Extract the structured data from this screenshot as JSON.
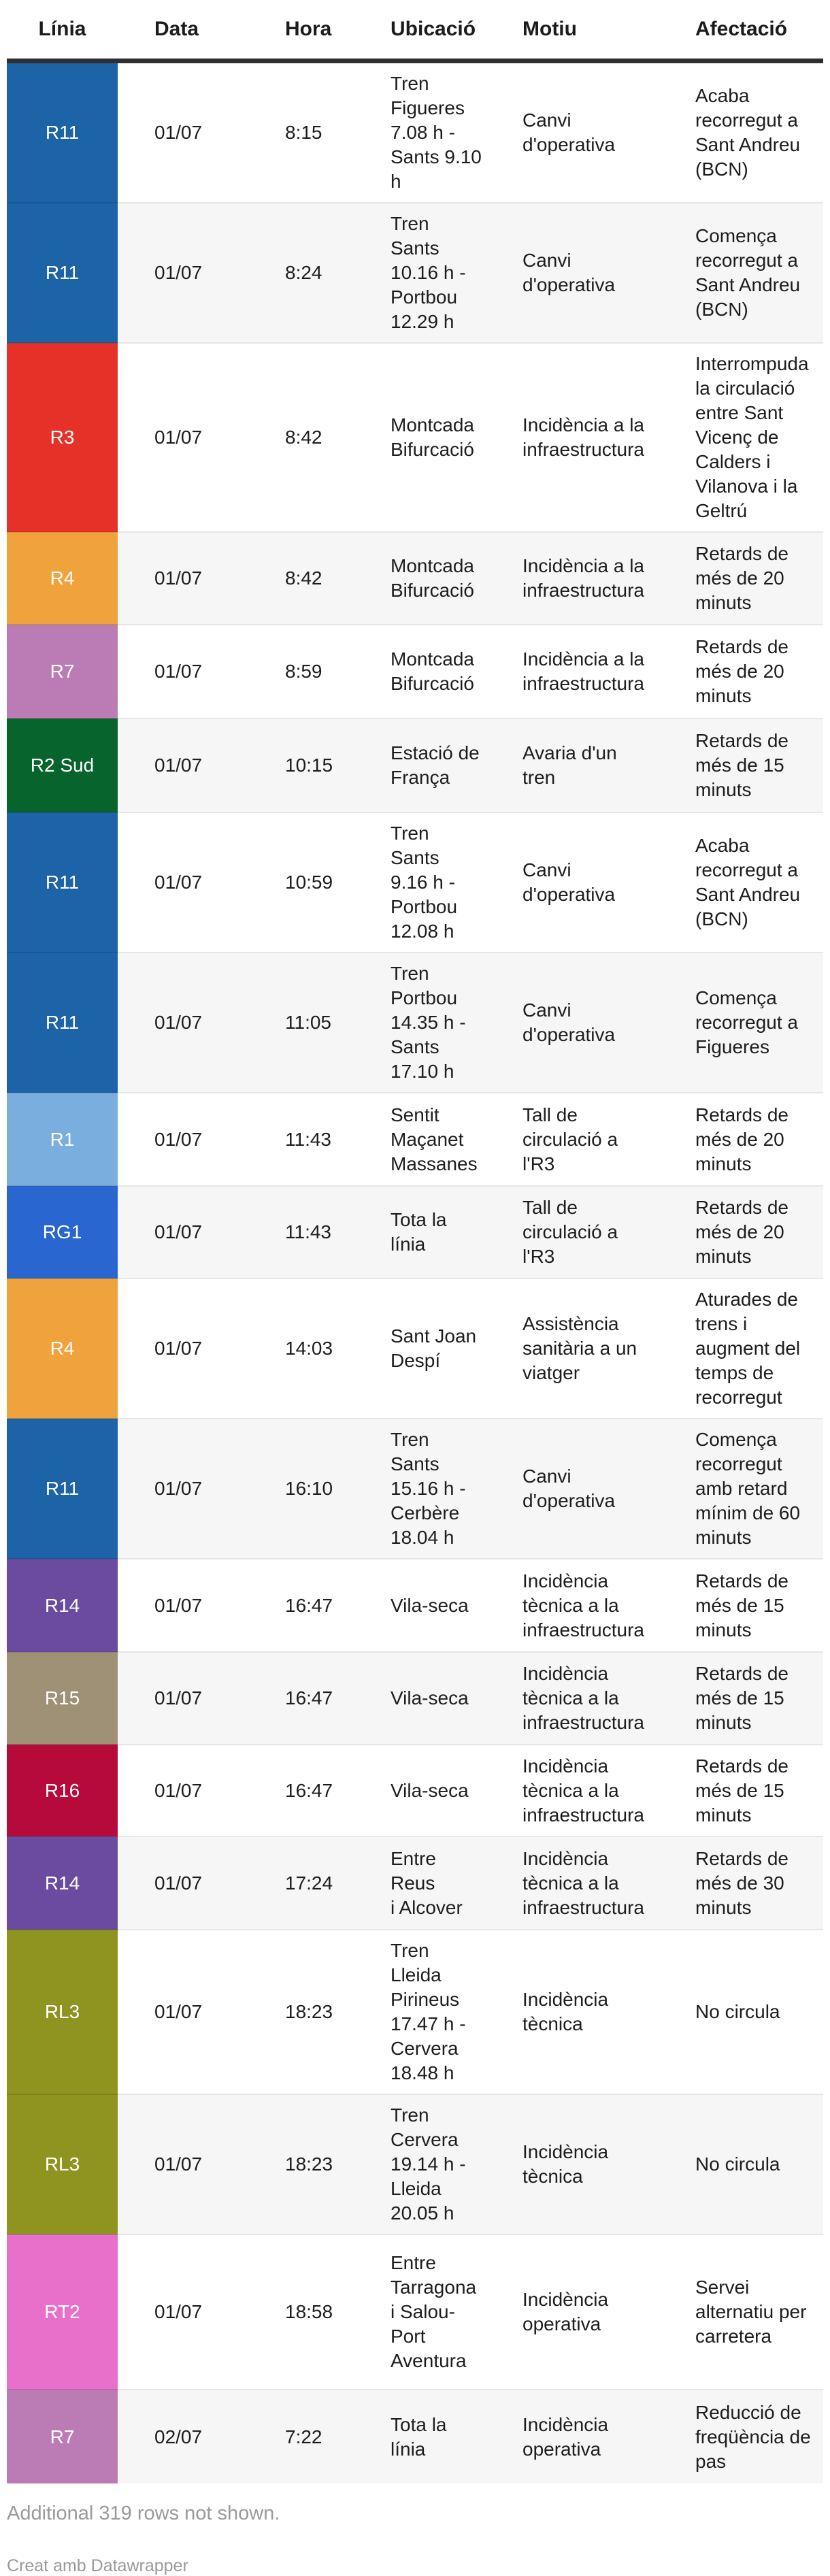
{
  "colors": {
    "header_rule": "#2f2f2f",
    "alt_row_bg": "#f6f6f6",
    "separator": "#e6e6e6",
    "body_text": "#1d1d1d",
    "footer_text": "#9a9a9a",
    "badge_text": "#ffffff"
  },
  "table": {
    "columns": [
      "Línia",
      "Data",
      "Hora",
      "Ubicació",
      "Motiu",
      "Afectació"
    ],
    "rows": [
      {
        "line": "R11",
        "color": "#1d63a8",
        "date": "01/07",
        "time": "8:15",
        "location": "Tren\nFigueres\n7.08 h -\nSants 9.10\nh",
        "reason": "Canvi\nd'operativa",
        "impact": "Acaba\nrecorregut a\nSant Andreu\n(BCN)"
      },
      {
        "line": "R11",
        "color": "#1d63a8",
        "date": "01/07",
        "time": "8:24",
        "location": "Tren Sants\n10.16 h -\nPortbou\n12.29 h",
        "reason": "Canvi\nd'operativa",
        "impact": "Comença\nrecorregut a\nSant Andreu\n(BCN)"
      },
      {
        "line": "R3",
        "color": "#e63128",
        "date": "01/07",
        "time": "8:42",
        "location": "Montcada\nBifurcació",
        "reason": "Incidència a la\ninfraestructura",
        "impact": "Interrompuda\nla circulació\nentre Sant\nVicenç de\nCalders i\nVilanova i la\nGeltrú"
      },
      {
        "line": "R4",
        "color": "#f0a33c",
        "date": "01/07",
        "time": "8:42",
        "location": "Montcada\nBifurcació",
        "reason": "Incidència a la\ninfraestructura",
        "impact": "Retards de\nmés de 20\nminuts"
      },
      {
        "line": "R7",
        "color": "#bb7cb6",
        "date": "01/07",
        "time": "8:59",
        "location": "Montcada\nBifurcació",
        "reason": "Incidència a la\ninfraestructura",
        "impact": "Retards de\nmés de 20\nminuts"
      },
      {
        "line": "R2 Sud",
        "color": "#07642c",
        "date": "01/07",
        "time": "10:15",
        "location": "Estació de\nFrança",
        "reason": "Avaria d'un\ntren",
        "impact": "Retards de\nmés de 15\nminuts"
      },
      {
        "line": "R11",
        "color": "#1d63a8",
        "date": "01/07",
        "time": "10:59",
        "location": "Tren Sants\n9.16 h -\nPortbou\n12.08 h",
        "reason": "Canvi\nd'operativa",
        "impact": "Acaba\nrecorregut a\nSant Andreu\n(BCN)"
      },
      {
        "line": "R11",
        "color": "#1d63a8",
        "date": "01/07",
        "time": "11:05",
        "location": "Tren\nPortbou\n14.35 h -\nSants\n17.10 h",
        "reason": "Canvi\nd'operativa",
        "impact": "Comença\nrecorregut a\nFigueres"
      },
      {
        "line": "R1",
        "color": "#7aaede",
        "date": "01/07",
        "time": "11:43",
        "location": "Sentit\nMaçanet\nMassanes",
        "reason": "Tall de\ncirculació a\nl'R3",
        "impact": "Retards de\nmés de 20\nminuts"
      },
      {
        "line": "RG1",
        "color": "#2966cf",
        "date": "01/07",
        "time": "11:43",
        "location": "Tota la\nlínia",
        "reason": "Tall de\ncirculació a\nl'R3",
        "impact": "Retards de\nmés de 20\nminuts"
      },
      {
        "line": "R4",
        "color": "#f0a33c",
        "date": "01/07",
        "time": "14:03",
        "location": "Sant Joan\nDespí",
        "reason": "Assistència\nsanitària a un\nviatger",
        "impact": "Aturades de\ntrens i\naugment del\ntemps de\nrecorregut"
      },
      {
        "line": "R11",
        "color": "#1d63a8",
        "date": "01/07",
        "time": "16:10",
        "location": "Tren Sants\n15.16 h -\nCerbère\n18.04 h",
        "reason": "Canvi\nd'operativa",
        "impact": "Comença\nrecorregut\namb retard\nmínim de 60\nminuts"
      },
      {
        "line": "R14",
        "color": "#6b4ba0",
        "date": "01/07",
        "time": "16:47",
        "location": "Vila-seca",
        "reason": "Incidència\ntècnica a la\ninfraestructura",
        "impact": "Retards de\nmés de 15\nminuts"
      },
      {
        "line": "R15",
        "color": "#9e9176",
        "date": "01/07",
        "time": "16:47",
        "location": "Vila-seca",
        "reason": "Incidència\ntècnica a la\ninfraestructura",
        "impact": "Retards de\nmés de 15\nminuts"
      },
      {
        "line": "R16",
        "color": "#b50a3a",
        "date": "01/07",
        "time": "16:47",
        "location": "Vila-seca",
        "reason": "Incidència\ntècnica a la\ninfraestructura",
        "impact": "Retards de\nmés de 15\nminuts"
      },
      {
        "line": "R14",
        "color": "#6b4ba0",
        "date": "01/07",
        "time": "17:24",
        "location": "Entre Reus\ni Alcover",
        "reason": "Incidència\ntècnica a la\ninfraestructura",
        "impact": "Retards de\nmés de 30\nminuts"
      },
      {
        "line": "RL3",
        "color": "#8e941f",
        "date": "01/07",
        "time": "18:23",
        "location": "Tren\nLleida\nPirineus\n17.47 h -\nCervera\n18.48 h",
        "reason": "Incidència\ntècnica",
        "impact": "No circula"
      },
      {
        "line": "RL3",
        "color": "#8e941f",
        "date": "01/07",
        "time": "18:23",
        "location": "Tren\nCervera\n19.14 h -\nLleida\n20.05 h",
        "reason": "Incidència\ntècnica",
        "impact": "No circula"
      },
      {
        "line": "RT2",
        "color": "#e86fca",
        "date": "01/07",
        "time": "18:58",
        "location": "Entre\nTarragona\ni Salou-\nPort\nAventura",
        "reason": "Incidència\noperativa",
        "impact": "Servei\nalternatiu per\ncarretera"
      },
      {
        "line": "R7",
        "color": "#bb7cb6",
        "date": "02/07",
        "time": "7:22",
        "location": "Tota la\nlínia",
        "reason": "Incidència\noperativa",
        "impact": "Reducció de\nfreqüència de\npas"
      }
    ]
  },
  "footer": {
    "note": "Additional 319 rows not shown.",
    "credit": "Creat amb Datawrapper"
  }
}
